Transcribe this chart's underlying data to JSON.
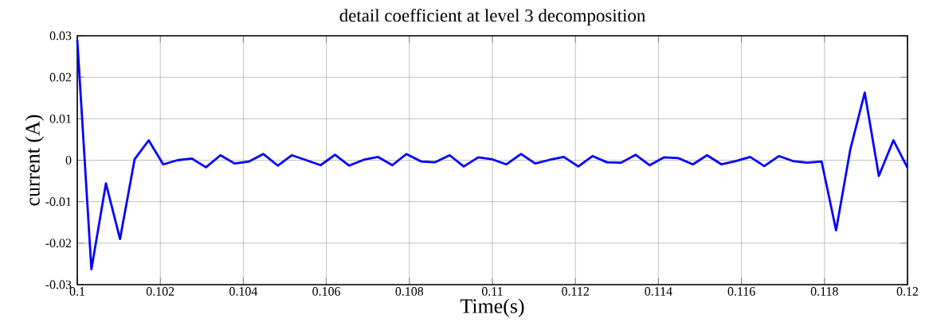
{
  "chart_data": {
    "type": "line",
    "title": "detail coefficient at level 3 decomposition",
    "xlabel": "Time(s)",
    "ylabel": "current (A)",
    "x": [
      0.1,
      0.10034,
      0.10069,
      0.10103,
      0.10138,
      0.10172,
      0.10207,
      0.10241,
      0.10276,
      0.1031,
      0.10345,
      0.10379,
      0.10414,
      0.10448,
      0.10483,
      0.10517,
      0.10552,
      0.10586,
      0.10621,
      0.10655,
      0.1069,
      0.10724,
      0.10759,
      0.10793,
      0.10828,
      0.10862,
      0.10897,
      0.10931,
      0.10966,
      0.11,
      0.11034,
      0.11069,
      0.11103,
      0.11138,
      0.11172,
      0.11207,
      0.11241,
      0.11276,
      0.1131,
      0.11345,
      0.11379,
      0.11414,
      0.11448,
      0.11483,
      0.11517,
      0.11552,
      0.11586,
      0.11621,
      0.11655,
      0.1169,
      0.11724,
      0.11759,
      0.11793,
      0.11828,
      0.11862,
      0.11897,
      0.11931,
      0.11966,
      0.12
    ],
    "series": [
      {
        "color": "#0000ff",
        "values": [
          0.029,
          -0.0263,
          -0.0056,
          -0.019,
          0.0002,
          0.0048,
          -0.001,
          0.0,
          0.0004,
          -0.0017,
          0.0012,
          -0.0008,
          -0.0003,
          0.0015,
          -0.0013,
          0.0012,
          0.0,
          -0.0012,
          0.0013,
          -0.0013,
          0.0001,
          0.0008,
          -0.0012,
          0.0015,
          -0.0003,
          -0.0005,
          0.0012,
          -0.0015,
          0.0007,
          0.0002,
          -0.001,
          0.0015,
          -0.0008,
          0.0001,
          0.0008,
          -0.0015,
          0.001,
          -0.0005,
          -0.0006,
          0.0013,
          -0.0012,
          0.0007,
          0.0005,
          -0.001,
          0.0012,
          -0.001,
          -0.0002,
          0.0008,
          -0.0014,
          0.001,
          -0.0002,
          -0.0006,
          -0.0003,
          -0.0169,
          0.0025,
          0.0163,
          -0.0038,
          0.0048,
          -0.0018
        ]
      }
    ],
    "xlim": [
      0.1,
      0.12
    ],
    "ylim": [
      -0.03,
      0.03
    ],
    "xticks": [
      0.1,
      0.102,
      0.104,
      0.106,
      0.108,
      0.11,
      0.112,
      0.114,
      0.116,
      0.118,
      0.12
    ],
    "yticks": [
      -0.03,
      -0.02,
      -0.01,
      0,
      0.01,
      0.02,
      0.03
    ],
    "grid": true,
    "marker": "none",
    "line_style": "solid"
  }
}
